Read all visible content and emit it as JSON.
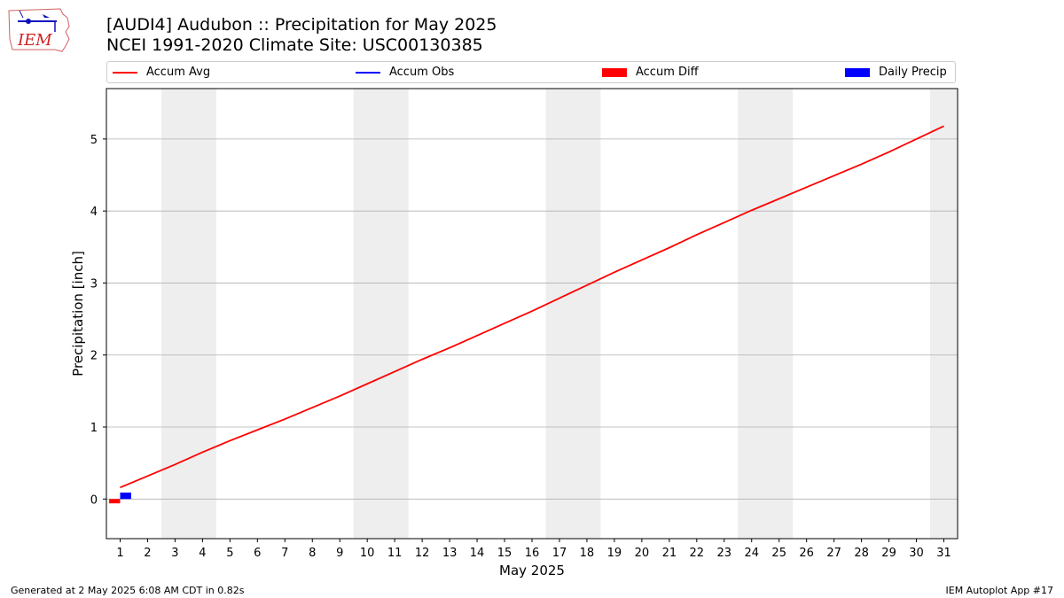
{
  "header": {
    "logo_text": "IEM",
    "title_line1": "[AUDI4] Audubon :: Precipitation for May 2025",
    "title_line2": "NCEI 1991-2020 Climate Site: USC00130385"
  },
  "legend": {
    "accum_avg": "Accum Avg",
    "accum_obs": "Accum Obs",
    "accum_diff": "Accum Diff",
    "daily_precip": "Daily Precip"
  },
  "colors": {
    "accum_avg": "#ff0000",
    "accum_obs": "#0000ff",
    "accum_diff": "#ff0000",
    "daily_precip": "#0000ff",
    "weekend_band": "#eeeeee",
    "grid": "#b0b0b0"
  },
  "chart_data": {
    "type": "line",
    "xlabel": "May 2025",
    "ylabel": "Precipitation [inch]",
    "xlim": [
      0.5,
      31.5
    ],
    "ylim": [
      -0.55,
      5.7
    ],
    "x_ticks": [
      1,
      2,
      3,
      4,
      5,
      6,
      7,
      8,
      9,
      10,
      11,
      12,
      13,
      14,
      15,
      16,
      17,
      18,
      19,
      20,
      21,
      22,
      23,
      24,
      25,
      26,
      27,
      28,
      29,
      30,
      31
    ],
    "y_ticks": [
      0,
      1,
      2,
      3,
      4,
      5
    ],
    "grid": "y-major",
    "legend_position": "top",
    "weekend_bands": [
      [
        2.5,
        4.5
      ],
      [
        9.5,
        11.5
      ],
      [
        16.5,
        18.5
      ],
      [
        23.5,
        25.5
      ],
      [
        30.5,
        31.5
      ]
    ],
    "series": [
      {
        "name": "Accum Avg",
        "type": "line",
        "x": [
          1,
          2,
          3,
          4,
          5,
          6,
          7,
          8,
          9,
          10,
          11,
          12,
          13,
          14,
          15,
          16,
          17,
          18,
          19,
          20,
          21,
          22,
          23,
          24,
          25,
          26,
          27,
          28,
          29,
          30,
          31
        ],
        "values": [
          0.16,
          0.32,
          0.48,
          0.65,
          0.81,
          0.96,
          1.11,
          1.27,
          1.43,
          1.6,
          1.77,
          1.94,
          2.1,
          2.27,
          2.44,
          2.61,
          2.79,
          2.97,
          3.15,
          3.32,
          3.49,
          3.67,
          3.84,
          4.01,
          4.17,
          4.33,
          4.49,
          4.65,
          4.82,
          5.0,
          5.18
        ]
      },
      {
        "name": "Accum Obs",
        "type": "line",
        "x": [
          1
        ],
        "values": [
          0.09
        ]
      },
      {
        "name": "Accum Diff",
        "type": "bar",
        "x": [
          1
        ],
        "values": [
          -0.06
        ]
      },
      {
        "name": "Daily Precip",
        "type": "bar",
        "x": [
          1
        ],
        "values": [
          0.09
        ]
      }
    ]
  },
  "footer": {
    "left": "Generated at 2 May 2025 6:08 AM CDT in 0.82s",
    "right": "IEM Autoplot App #17"
  }
}
